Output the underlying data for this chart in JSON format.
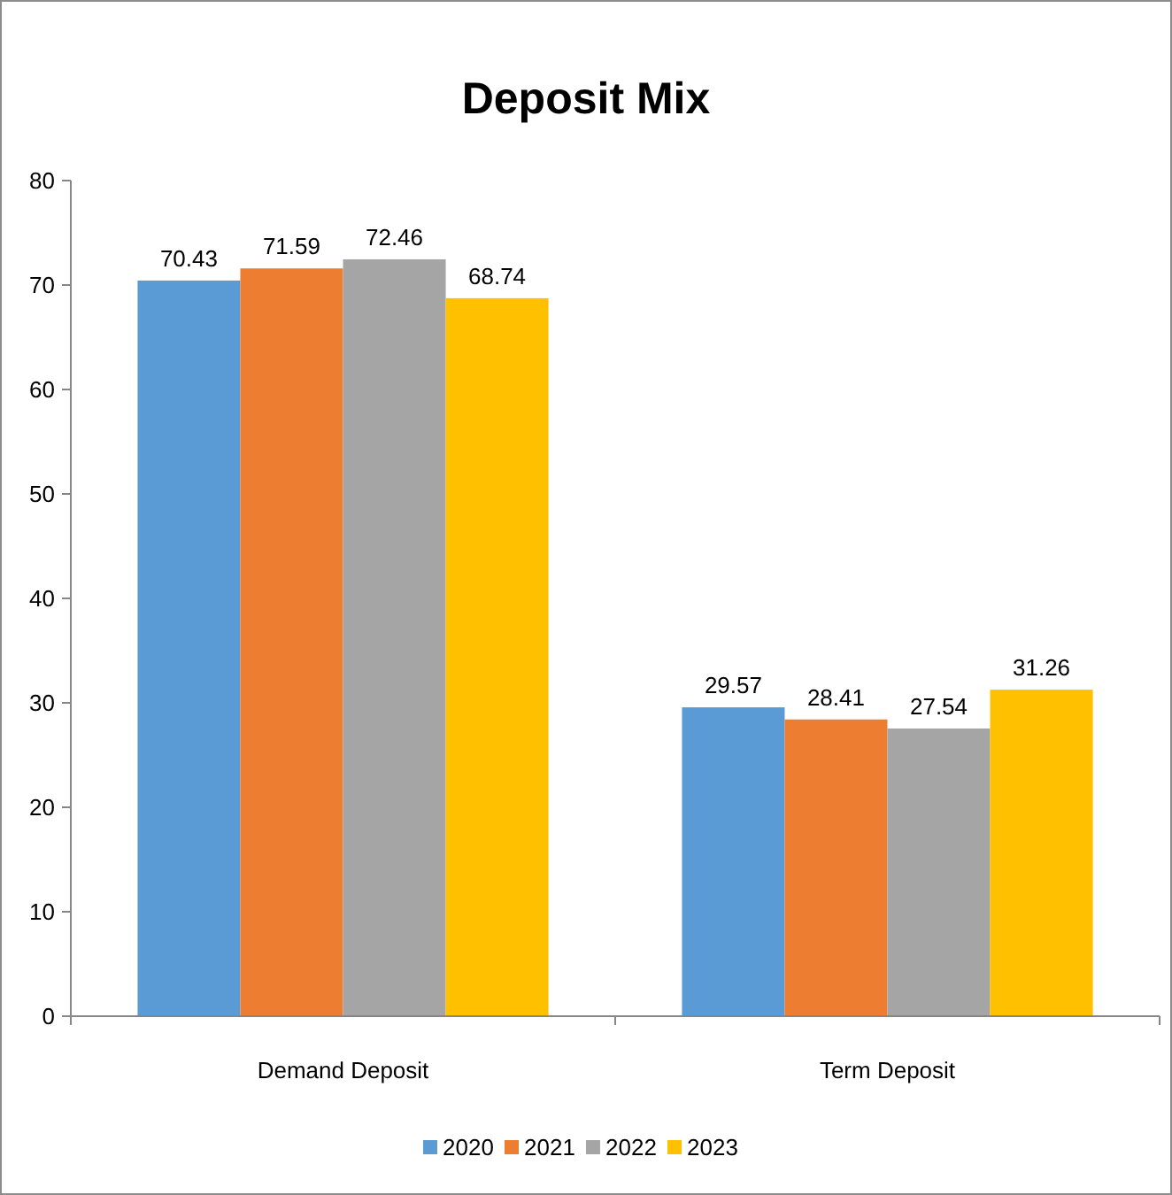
{
  "chart_data": {
    "type": "bar",
    "title": "Deposit Mix",
    "categories": [
      "Demand Deposit",
      "Term Deposit"
    ],
    "series": [
      {
        "name": "2020",
        "color": "#5b9bd5",
        "values": [
          70.43,
          29.57
        ]
      },
      {
        "name": "2021",
        "color": "#ed7d31",
        "values": [
          71.59,
          28.41
        ]
      },
      {
        "name": "2022",
        "color": "#a5a5a5",
        "values": [
          72.46,
          27.54
        ]
      },
      {
        "name": "2023",
        "color": "#ffc000",
        "values": [
          68.74,
          31.26
        ]
      }
    ],
    "ylim": [
      0,
      80
    ],
    "yticks": [
      0,
      10,
      20,
      30,
      40,
      50,
      60,
      70,
      80
    ],
    "data_labels": true,
    "legend": "bottom",
    "grid": false
  }
}
